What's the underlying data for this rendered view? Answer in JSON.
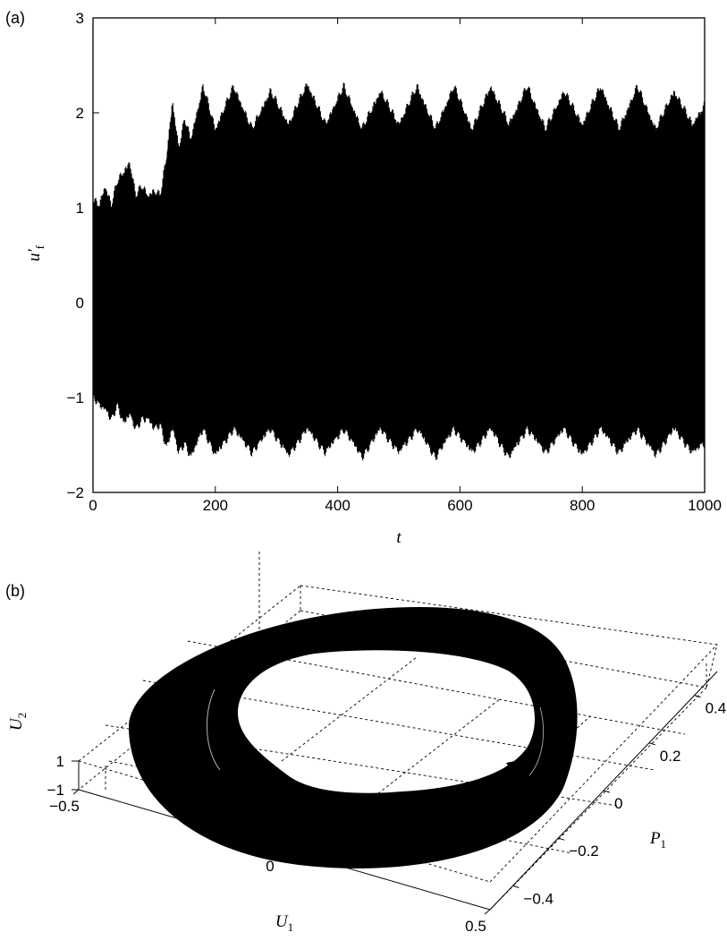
{
  "chart_data": [
    {
      "panel_label": "(a)",
      "type": "line",
      "xlabel": "t",
      "ylabel_main": "u",
      "ylabel_prime": "′",
      "ylabel_sub": "f",
      "xlim": [
        0,
        1000
      ],
      "ylim": [
        -2,
        3
      ],
      "xticks": [
        "0",
        "200",
        "400",
        "600",
        "800",
        "1000"
      ],
      "yticks": [
        "−2",
        "−1",
        "0",
        "1",
        "2",
        "3"
      ],
      "xtick_values": [
        0,
        200,
        400,
        600,
        800,
        1000
      ],
      "ytick_values": [
        -2,
        -1,
        0,
        1,
        2,
        3
      ],
      "series": [
        {
          "color": "#000000",
          "envelope": {
            "t": [
              0,
              10,
              20,
              30,
              40,
              50,
              60,
              70,
              80,
              90,
              100,
              110,
              120,
              130,
              140,
              150,
              160,
              180,
              200,
              230,
              260,
              290,
              320,
              350,
              380,
              410,
              440,
              470,
              500,
              530,
              560,
              590,
              620,
              650,
              680,
              710,
              740,
              770,
              800,
              830,
              860,
              890,
              920,
              950,
              980,
              1000
            ],
            "upper": [
              1.05,
              1.0,
              1.2,
              1.0,
              1.25,
              1.35,
              1.45,
              1.1,
              1.2,
              1.1,
              1.15,
              1.1,
              1.5,
              2.1,
              1.6,
              1.9,
              1.7,
              2.25,
              1.8,
              2.25,
              1.8,
              2.2,
              1.85,
              2.28,
              1.85,
              2.25,
              1.8,
              2.2,
              1.85,
              2.25,
              1.8,
              2.25,
              1.8,
              2.25,
              1.85,
              2.25,
              1.8,
              2.2,
              1.85,
              2.25,
              1.8,
              2.25,
              1.8,
              2.2,
              1.85,
              2.05
            ],
            "lower": [
              -0.95,
              -1.05,
              -1.1,
              -1.2,
              -1.05,
              -1.25,
              -1.15,
              -1.3,
              -1.2,
              -1.2,
              -1.3,
              -1.25,
              -1.5,
              -1.3,
              -1.55,
              -1.45,
              -1.6,
              -1.3,
              -1.58,
              -1.3,
              -1.55,
              -1.3,
              -1.58,
              -1.3,
              -1.55,
              -1.3,
              -1.6,
              -1.3,
              -1.55,
              -1.3,
              -1.6,
              -1.3,
              -1.55,
              -1.3,
              -1.6,
              -1.3,
              -1.55,
              -1.3,
              -1.58,
              -1.3,
              -1.55,
              -1.3,
              -1.58,
              -1.3,
              -1.55,
              -1.45
            ]
          }
        }
      ]
    },
    {
      "panel_label": "(b)",
      "type": "scatter",
      "projection": "3d",
      "xlabel_main": "U",
      "xlabel_sub": "1",
      "ylabel_main": "P",
      "ylabel_sub": "1",
      "zlabel_main": "U",
      "zlabel_sub": "2",
      "xlim": [
        -0.5,
        0.5
      ],
      "ylim": [
        -0.5,
        0.5
      ],
      "zlim": [
        -1,
        1
      ],
      "xticks": [
        "−0.5",
        "0",
        "0.5"
      ],
      "yticks": [
        "−0.4",
        "−0.2",
        "0",
        "0.2",
        "0.4"
      ],
      "zticks": [
        "−1",
        "1"
      ],
      "xtick_values": [
        -0.5,
        0,
        0.5
      ],
      "ytick_values": [
        -0.4,
        -0.2,
        0,
        0.2,
        0.4
      ],
      "ztick_values": [
        -1,
        1
      ],
      "attractor": {
        "shape": "torus",
        "color": "#000000",
        "outer_radius_U1": 0.48,
        "outer_radius_P1": 0.48,
        "inner_radius_U1": 0.22,
        "inner_radius_P1": 0.22,
        "U2_range": [
          -1,
          1
        ]
      },
      "annotation": "arrow"
    }
  ]
}
